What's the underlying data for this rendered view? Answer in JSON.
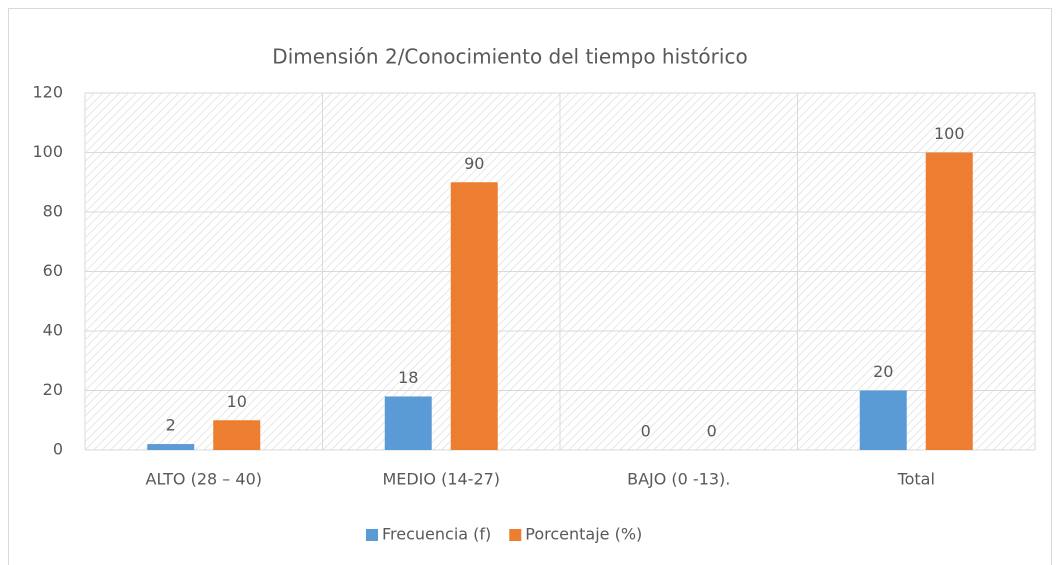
{
  "chart_data": {
    "type": "bar",
    "title": "Dimensión 2/Conocimiento del tiempo histórico",
    "categories": [
      "ALTO (28 – 40)",
      "MEDIO (14-27)",
      "BAJO (0 -13).",
      "Total"
    ],
    "series": [
      {
        "name": "Frecuencia (f)",
        "color": "#5b9bd5",
        "values": [
          2,
          18,
          0,
          20
        ]
      },
      {
        "name": "Porcentaje (%)",
        "color": "#ed7d31",
        "values": [
          10,
          90,
          0,
          100
        ]
      }
    ],
    "ylim": [
      0,
      120
    ],
    "yticks": [
      0,
      20,
      40,
      60,
      80,
      100,
      120
    ],
    "grid": true,
    "legend": "bottom"
  }
}
